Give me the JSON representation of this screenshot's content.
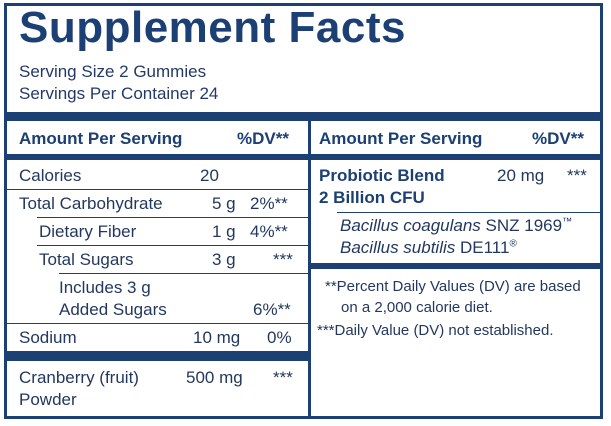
{
  "title": "Supplement Facts",
  "serving_size": "Serving Size 2 Gummies",
  "servings_per_container": "Servings Per Container 24",
  "left": {
    "header_amount": "Amount Per Serving",
    "header_dv": "%DV**",
    "rows": {
      "calories": {
        "name": "Calories",
        "amount": "20"
      },
      "total_carb": {
        "name": "Total Carbohydrate",
        "amount": "5 g",
        "dv": "2%**"
      },
      "fiber": {
        "name": "Dietary Fiber",
        "amount": "1 g",
        "dv": "4%**"
      },
      "total_sugars": {
        "name": "Total Sugars",
        "amount": "3 g",
        "dv": "***"
      },
      "added_sugars": {
        "line1": "Includes 3 g",
        "line2": "Added Sugars",
        "dv": "6%**"
      },
      "sodium": {
        "name": "Sodium",
        "amount": "10 mg",
        "dv": "0%"
      },
      "cranberry": {
        "line1": "Cranberry (fruit)",
        "line2": "Powder",
        "amount": "500 mg",
        "dv": "***"
      }
    }
  },
  "right": {
    "header_amount": "Amount Per Serving",
    "header_dv": "%DV**",
    "blend_name": "Probiotic Blend",
    "blend_cfu": "2 Billion CFU",
    "blend_amount": "20 mg",
    "blend_dv": "***",
    "strain1_species": "Bacillus coagulans",
    "strain1_id": "SNZ 1969",
    "strain1_mark": "™",
    "strain2_species": "Bacillus subtilis",
    "strain2_id": "DE111",
    "strain2_mark": "®",
    "footnote1_a": "**Percent Daily Values (DV) are based",
    "footnote1_b": "on a 2,000 calorie diet.",
    "footnote2": "***Daily Value (DV) not established."
  }
}
